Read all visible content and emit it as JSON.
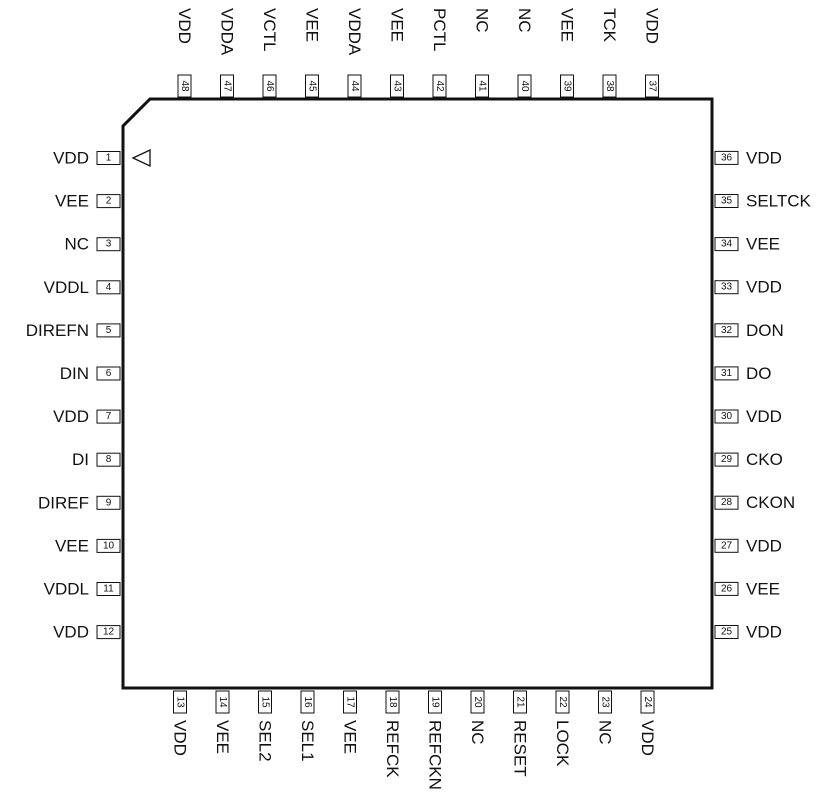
{
  "pins": {
    "left": [
      {
        "num": "1",
        "name": "VDD"
      },
      {
        "num": "2",
        "name": "VEE"
      },
      {
        "num": "3",
        "name": "NC"
      },
      {
        "num": "4",
        "name": "VDDL"
      },
      {
        "num": "5",
        "name": "DIREFN"
      },
      {
        "num": "6",
        "name": "DIN"
      },
      {
        "num": "7",
        "name": "VDD"
      },
      {
        "num": "8",
        "name": "DI"
      },
      {
        "num": "9",
        "name": "DIREF"
      },
      {
        "num": "10",
        "name": "VEE"
      },
      {
        "num": "11",
        "name": "VDDL"
      },
      {
        "num": "12",
        "name": "VDD"
      }
    ],
    "bottom": [
      {
        "num": "13",
        "name": "VDD"
      },
      {
        "num": "14",
        "name": "VEE"
      },
      {
        "num": "15",
        "name": "SEL2"
      },
      {
        "num": "16",
        "name": "SEL1"
      },
      {
        "num": "17",
        "name": "VEE"
      },
      {
        "num": "18",
        "name": "REFCK"
      },
      {
        "num": "19",
        "name": "REFCKN"
      },
      {
        "num": "20",
        "name": "NC"
      },
      {
        "num": "21",
        "name": "RESET"
      },
      {
        "num": "22",
        "name": "LOCK"
      },
      {
        "num": "23",
        "name": "NC"
      },
      {
        "num": "24",
        "name": "VDD"
      }
    ],
    "right": [
      {
        "num": "25",
        "name": "VDD"
      },
      {
        "num": "26",
        "name": "VEE"
      },
      {
        "num": "27",
        "name": "VDD"
      },
      {
        "num": "28",
        "name": "CKON"
      },
      {
        "num": "29",
        "name": "CKO"
      },
      {
        "num": "30",
        "name": "VDD"
      },
      {
        "num": "31",
        "name": "DO"
      },
      {
        "num": "32",
        "name": "DON"
      },
      {
        "num": "33",
        "name": "VDD"
      },
      {
        "num": "34",
        "name": "VEE"
      },
      {
        "num": "35",
        "name": "SELTCK"
      },
      {
        "num": "36",
        "name": "VDD"
      }
    ],
    "top": [
      {
        "num": "37",
        "name": "VDD"
      },
      {
        "num": "38",
        "name": "TCK"
      },
      {
        "num": "39",
        "name": "VEE"
      },
      {
        "num": "40",
        "name": "NC"
      },
      {
        "num": "41",
        "name": "NC"
      },
      {
        "num": "42",
        "name": "PCTL"
      },
      {
        "num": "43",
        "name": "VEE"
      },
      {
        "num": "44",
        "name": "VDDA"
      },
      {
        "num": "45",
        "name": "VEE"
      },
      {
        "num": "46",
        "name": "VCTL"
      },
      {
        "num": "47",
        "name": "VDDA"
      },
      {
        "num": "48",
        "name": "VDD"
      }
    ]
  },
  "pin1_marker": "triangle"
}
